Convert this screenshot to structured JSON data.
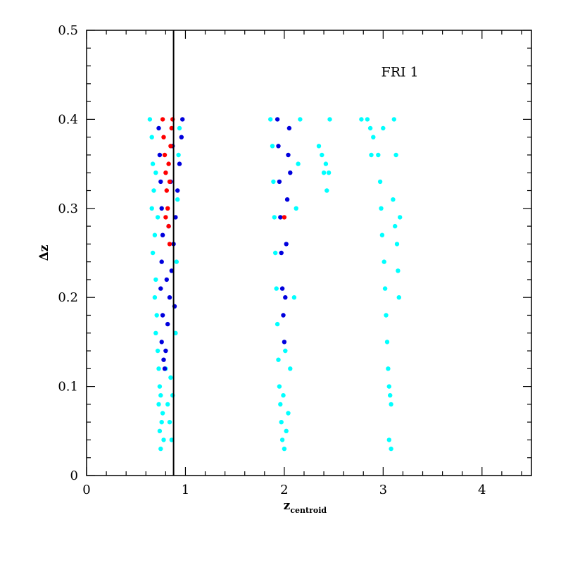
{
  "chart_data": {
    "type": "scatter",
    "title": "",
    "annotation": "FRI 1",
    "xlabel": {
      "main": "z",
      "sub": "centroid"
    },
    "ylabel": "Δz",
    "xlim": [
      0,
      4.5
    ],
    "ylim": [
      0,
      0.5
    ],
    "x_ticks": [
      0,
      1,
      2,
      3,
      4
    ],
    "x_tick_labels": [
      "0",
      "1",
      "2",
      "3",
      "4"
    ],
    "y_ticks": [
      0,
      0.1,
      0.2,
      0.3,
      0.4,
      0.5
    ],
    "y_tick_labels": [
      "0",
      "0.1",
      "0.2",
      "0.3",
      "0.4",
      "0.5"
    ],
    "grid": false,
    "vertical_line": {
      "x": 0.88,
      "color": "#000000"
    },
    "colors": {
      "cyan": "#00ffff",
      "blue": "#0000dd",
      "red": "#ff0000"
    },
    "series": [
      {
        "color": "#00ffff",
        "points": [
          [
            0.64,
            0.4
          ],
          [
            0.66,
            0.38
          ],
          [
            0.67,
            0.35
          ],
          [
            0.68,
            0.32
          ],
          [
            0.66,
            0.3
          ],
          [
            0.69,
            0.27
          ],
          [
            0.67,
            0.25
          ],
          [
            0.7,
            0.22
          ],
          [
            0.69,
            0.2
          ],
          [
            0.71,
            0.18
          ],
          [
            0.7,
            0.16
          ],
          [
            0.72,
            0.14
          ],
          [
            0.73,
            0.12
          ],
          [
            0.74,
            0.1
          ],
          [
            0.75,
            0.09
          ],
          [
            0.73,
            0.08
          ],
          [
            0.77,
            0.07
          ],
          [
            0.76,
            0.06
          ],
          [
            0.74,
            0.05
          ],
          [
            0.78,
            0.04
          ],
          [
            0.75,
            0.03
          ],
          [
            0.85,
            0.11
          ],
          [
            0.87,
            0.09
          ],
          [
            0.84,
            0.06
          ],
          [
            0.86,
            0.04
          ],
          [
            0.9,
            0.16
          ],
          [
            0.91,
            0.24
          ],
          [
            0.92,
            0.31
          ],
          [
            0.93,
            0.36
          ],
          [
            0.94,
            0.39
          ],
          [
            0.8,
            0.12
          ],
          [
            0.82,
            0.08
          ],
          [
            0.7,
            0.34
          ],
          [
            0.72,
            0.29
          ],
          [
            1.86,
            0.4
          ],
          [
            1.88,
            0.37
          ],
          [
            1.89,
            0.33
          ],
          [
            1.9,
            0.29
          ],
          [
            1.91,
            0.25
          ],
          [
            1.92,
            0.21
          ],
          [
            1.93,
            0.17
          ],
          [
            1.94,
            0.13
          ],
          [
            1.95,
            0.1
          ],
          [
            1.96,
            0.08
          ],
          [
            1.97,
            0.06
          ],
          [
            1.98,
            0.04
          ],
          [
            2.0,
            0.03
          ],
          [
            2.02,
            0.05
          ],
          [
            2.04,
            0.07
          ],
          [
            2.06,
            0.12
          ],
          [
            2.1,
            0.2
          ],
          [
            2.12,
            0.3
          ],
          [
            2.14,
            0.35
          ],
          [
            2.16,
            0.4
          ],
          [
            1.99,
            0.09
          ],
          [
            2.01,
            0.14
          ],
          [
            2.35,
            0.37
          ],
          [
            2.38,
            0.36
          ],
          [
            2.4,
            0.34
          ],
          [
            2.42,
            0.35
          ],
          [
            2.43,
            0.32
          ],
          [
            2.45,
            0.34
          ],
          [
            2.46,
            0.4
          ],
          [
            2.78,
            0.4
          ],
          [
            2.84,
            0.4
          ],
          [
            2.87,
            0.39
          ],
          [
            2.88,
            0.36
          ],
          [
            2.9,
            0.38
          ],
          [
            2.95,
            0.36
          ],
          [
            2.97,
            0.33
          ],
          [
            2.98,
            0.3
          ],
          [
            2.99,
            0.27
          ],
          [
            3.0,
            0.39
          ],
          [
            3.01,
            0.24
          ],
          [
            3.02,
            0.21
          ],
          [
            3.03,
            0.18
          ],
          [
            3.04,
            0.15
          ],
          [
            3.05,
            0.12
          ],
          [
            3.06,
            0.1
          ],
          [
            3.07,
            0.09
          ],
          [
            3.08,
            0.08
          ],
          [
            3.06,
            0.04
          ],
          [
            3.08,
            0.03
          ],
          [
            3.1,
            0.31
          ],
          [
            3.12,
            0.28
          ],
          [
            3.14,
            0.26
          ],
          [
            3.15,
            0.23
          ],
          [
            3.16,
            0.2
          ],
          [
            3.17,
            0.29
          ],
          [
            3.13,
            0.36
          ],
          [
            3.11,
            0.4
          ]
        ]
      },
      {
        "color": "#0000dd",
        "points": [
          [
            0.73,
            0.39
          ],
          [
            0.74,
            0.36
          ],
          [
            0.75,
            0.33
          ],
          [
            0.76,
            0.3
          ],
          [
            0.77,
            0.27
          ],
          [
            0.76,
            0.24
          ],
          [
            0.75,
            0.21
          ],
          [
            0.77,
            0.18
          ],
          [
            0.76,
            0.15
          ],
          [
            0.78,
            0.13
          ],
          [
            0.79,
            0.12
          ],
          [
            0.8,
            0.14
          ],
          [
            0.82,
            0.17
          ],
          [
            0.84,
            0.2
          ],
          [
            0.86,
            0.23
          ],
          [
            0.88,
            0.26
          ],
          [
            0.9,
            0.29
          ],
          [
            0.92,
            0.32
          ],
          [
            0.94,
            0.35
          ],
          [
            0.96,
            0.38
          ],
          [
            0.97,
            0.4
          ],
          [
            0.81,
            0.22
          ],
          [
            0.83,
            0.28
          ],
          [
            0.85,
            0.33
          ],
          [
            0.87,
            0.37
          ],
          [
            0.89,
            0.19
          ],
          [
            1.93,
            0.4
          ],
          [
            1.94,
            0.37
          ],
          [
            1.95,
            0.33
          ],
          [
            1.96,
            0.29
          ],
          [
            1.97,
            0.25
          ],
          [
            1.98,
            0.21
          ],
          [
            1.99,
            0.18
          ],
          [
            2.0,
            0.15
          ],
          [
            2.01,
            0.2
          ],
          [
            2.02,
            0.26
          ],
          [
            2.03,
            0.31
          ],
          [
            2.04,
            0.36
          ],
          [
            2.05,
            0.39
          ],
          [
            2.06,
            0.34
          ]
        ]
      },
      {
        "color": "#ff0000",
        "points": [
          [
            0.77,
            0.4
          ],
          [
            0.78,
            0.38
          ],
          [
            0.79,
            0.36
          ],
          [
            0.8,
            0.34
          ],
          [
            0.81,
            0.32
          ],
          [
            0.82,
            0.3
          ],
          [
            0.83,
            0.28
          ],
          [
            0.84,
            0.26
          ],
          [
            0.85,
            0.37
          ],
          [
            0.86,
            0.39
          ],
          [
            0.84,
            0.33
          ],
          [
            0.83,
            0.35
          ],
          [
            0.87,
            0.4
          ],
          [
            0.8,
            0.29
          ],
          [
            2.0,
            0.29
          ]
        ]
      }
    ]
  }
}
